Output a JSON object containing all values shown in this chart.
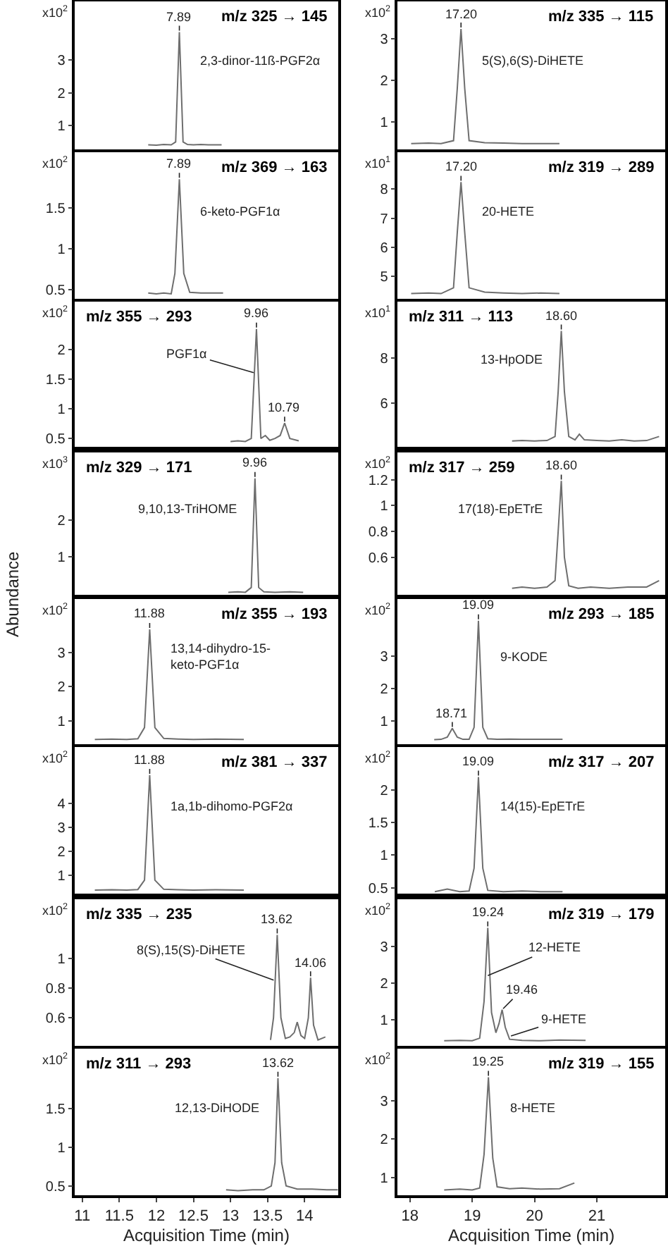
{
  "chart_data": [
    {
      "type": "line",
      "title": "m/z 325 → 145",
      "x": [
        11.89,
        12.0,
        12.1,
        12.2,
        12.26,
        12.31,
        12.36,
        12.42,
        12.5,
        12.6,
        12.7,
        12.88
      ],
      "values": [
        0.41,
        0.4,
        0.42,
        0.41,
        0.5,
        3.86,
        0.5,
        0.42,
        0.41,
        0.42,
        0.41,
        0.41
      ],
      "color": "#6e6e6e",
      "xlim": [
        10.9,
        14.45
      ],
      "xticks": [
        11,
        11.5,
        12,
        12.5,
        13,
        13.5,
        14
      ],
      "ylim": [
        0.27,
        4.8
      ],
      "yticks": [
        1,
        2,
        3
      ],
      "tick_labels": "y",
      "annotations": [
        "x10$^{2}$",
        {
          "text": "7.89",
          "x": 12.31,
          "y": 3.86
        },
        "2,3-dinor-11ß-PGF2α"
      ]
    },
    {
      "type": "line",
      "title": "m/z 335 → 115",
      "x": [
        18.02,
        18.3,
        18.5,
        18.7,
        18.76,
        18.82,
        18.88,
        18.95,
        19.2,
        19.5,
        19.8,
        20.1,
        20.4
      ],
      "values": [
        0.48,
        0.49,
        0.48,
        0.55,
        1.8,
        3.23,
        1.8,
        0.55,
        0.5,
        0.49,
        0.48,
        0.48,
        0.48
      ],
      "color": "#6e6e6e",
      "xlim": [
        17.8,
        22.1
      ],
      "xticks": [
        18,
        19,
        20,
        21
      ],
      "ylim": [
        0.34,
        3.89
      ],
      "yticks": [
        1,
        2,
        3
      ],
      "tick_labels": "y",
      "annotations": [
        "x10$^{2}$",
        {
          "text": "17.20",
          "x": 18.82,
          "y": 3.23
        },
        "5(S),6(S)-DiHETE"
      ]
    },
    {
      "type": "line",
      "title": "m/z 369 → 163",
      "x": [
        11.89,
        12.0,
        12.1,
        12.2,
        12.25,
        12.31,
        12.37,
        12.45,
        12.6,
        12.75,
        12.9
      ],
      "values": [
        0.46,
        0.45,
        0.46,
        0.45,
        0.7,
        1.85,
        0.7,
        0.47,
        0.46,
        0.46,
        0.46
      ],
      "color": "#6e6e6e",
      "xlim": [
        10.9,
        14.45
      ],
      "xticks": [
        11,
        11.5,
        12,
        12.5,
        13,
        13.5,
        14
      ],
      "ylim": [
        0.39,
        2.18
      ],
      "yticks": [
        0.5,
        1,
        1.5
      ],
      "tick_labels": "y",
      "annotations": [
        "x10$^{2}$",
        {
          "text": "7.89",
          "x": 12.31,
          "y": 1.85
        },
        "6-keto-PGF1α"
      ]
    },
    {
      "type": "line",
      "title": "m/z 319 → 289",
      "x": [
        18.02,
        18.3,
        18.5,
        18.7,
        18.76,
        18.82,
        18.88,
        18.95,
        19.2,
        19.5,
        19.8,
        20.1,
        20.4
      ],
      "values": [
        4.4,
        4.42,
        4.4,
        4.6,
        6.5,
        8.24,
        6.5,
        4.6,
        4.45,
        4.42,
        4.4,
        4.42,
        4.4
      ],
      "color": "#6e6e6e",
      "xlim": [
        17.8,
        22.1
      ],
      "xticks": [
        18,
        19,
        20,
        21
      ],
      "ylim": [
        4.22,
        9.27
      ],
      "yticks": [
        5,
        6,
        7,
        8
      ],
      "tick_labels": "y",
      "annotations": [
        "x10$^{1}$",
        {
          "text": "17.20",
          "x": 18.82,
          "y": 8.24
        },
        "20-HETE"
      ]
    },
    {
      "type": "line",
      "title": "m/z 355 → 293",
      "x": [
        13.0,
        13.1,
        13.2,
        13.28,
        13.35,
        13.41,
        13.47,
        13.53,
        13.6,
        13.67,
        13.73,
        13.8,
        13.92
      ],
      "values": [
        0.45,
        0.46,
        0.45,
        0.5,
        2.34,
        0.5,
        0.55,
        0.47,
        0.5,
        0.55,
        0.76,
        0.5,
        0.46
      ],
      "color": "#6e6e6e",
      "xlim": [
        10.9,
        14.45
      ],
      "xticks": [
        11,
        11.5,
        12,
        12.5,
        13,
        13.5,
        14
      ],
      "ylim": [
        0.36,
        2.8
      ],
      "yticks": [
        0.5,
        1,
        1.5,
        2
      ],
      "tick_labels": "y",
      "annotations": [
        "x10$^{2}$",
        {
          "text": "9.96",
          "x": 13.35,
          "y": 2.34
        },
        {
          "text": "10.79",
          "x": 13.73,
          "y": 0.76
        },
        {
          "text": "PGF1α",
          "x": 13.33,
          "y": 1.6
        }
      ]
    },
    {
      "type": "line",
      "title": "m/z 311 → 113",
      "x": [
        19.64,
        19.8,
        20.0,
        20.2,
        20.33,
        20.38,
        20.43,
        20.48,
        20.55,
        20.65,
        20.72,
        20.8,
        21.0,
        21.2,
        21.4,
        21.6,
        21.8,
        22.0
      ],
      "values": [
        4.3,
        4.32,
        4.3,
        4.32,
        4.5,
        6.5,
        9.2,
        6.5,
        4.5,
        4.35,
        4.6,
        4.35,
        4.32,
        4.3,
        4.35,
        4.3,
        4.32,
        4.5
      ],
      "color": "#6e6e6e",
      "xlim": [
        17.8,
        22.1
      ],
      "xticks": [
        18,
        19,
        20,
        21
      ],
      "ylim": [
        4.04,
        10.5
      ],
      "yticks": [
        6,
        8
      ],
      "tick_labels": "y",
      "annotations": [
        "x10$^{1}$",
        {
          "text": "18.60",
          "x": 20.43,
          "y": 9.2
        },
        "13-HpODE"
      ]
    },
    {
      "type": "line",
      "title": "m/z 329 → 171",
      "ylabel": "Abundance",
      "x": [
        12.97,
        13.1,
        13.2,
        13.28,
        13.33,
        13.38,
        13.45,
        13.6,
        13.8,
        13.98
      ],
      "values": [
        0.02,
        0.03,
        0.02,
        0.15,
        3.14,
        0.15,
        0.03,
        0.02,
        0.03,
        0.02
      ],
      "color": "#6e6e6e",
      "xlim": [
        10.9,
        14.45
      ],
      "xticks": [
        11,
        11.5,
        12,
        12.5,
        13,
        13.5,
        14
      ],
      "ylim": [
        -0.05,
        3.85
      ],
      "yticks": [
        1,
        2
      ],
      "tick_labels": "y",
      "annotations": [
        "x10$^{3}$",
        {
          "text": "9.96",
          "x": 13.33,
          "y": 3.14
        },
        "9,10,13-TriHOME"
      ]
    },
    {
      "type": "line",
      "title": "m/z 317 → 259",
      "x": [
        19.64,
        19.8,
        20.0,
        20.2,
        20.33,
        20.38,
        20.43,
        20.48,
        20.55,
        20.7,
        20.9,
        21.2,
        21.5,
        21.8,
        22.0
      ],
      "values": [
        0.36,
        0.37,
        0.36,
        0.37,
        0.42,
        0.8,
        1.19,
        0.6,
        0.38,
        0.36,
        0.37,
        0.36,
        0.37,
        0.37,
        0.42
      ],
      "color": "#6e6e6e",
      "xlim": [
        17.8,
        22.1
      ],
      "xticks": [
        18,
        19,
        20,
        21
      ],
      "ylim": [
        0.31,
        1.41
      ],
      "yticks": [
        0.6,
        0.8,
        1,
        1.2
      ],
      "tick_labels": "y",
      "annotations": [
        "x10$^{2}$",
        {
          "text": "18.60",
          "x": 20.43,
          "y": 1.19
        },
        "17(18)-EpETrE"
      ]
    },
    {
      "type": "line",
      "title": "m/z 355 → 193",
      "x": [
        11.17,
        11.4,
        11.6,
        11.75,
        11.84,
        11.91,
        11.98,
        12.1,
        12.3,
        12.5,
        12.8,
        13.18
      ],
      "values": [
        0.45,
        0.46,
        0.45,
        0.47,
        0.8,
        3.69,
        0.8,
        0.48,
        0.46,
        0.45,
        0.46,
        0.45
      ],
      "color": "#6e6e6e",
      "xlim": [
        10.9,
        14.45
      ],
      "xticks": [
        11,
        11.5,
        12,
        12.5,
        13,
        13.5,
        14
      ],
      "ylim": [
        0.31,
        4.58
      ],
      "yticks": [
        1,
        2,
        3
      ],
      "tick_labels": "y",
      "annotations": [
        "x10$^{2}$",
        {
          "text": "11.88",
          "x": 11.91,
          "y": 3.69
        },
        "13,14-dihydro-15-keto-PGF1α"
      ]
    },
    {
      "type": "line",
      "title": "m/z 293 → 185",
      "x": [
        18.39,
        18.5,
        18.6,
        18.68,
        18.76,
        18.85,
        18.95,
        19.03,
        19.1,
        19.17,
        19.25,
        19.4,
        19.6,
        19.8,
        20.1,
        20.45
      ],
      "values": [
        0.42,
        0.43,
        0.5,
        0.77,
        0.5,
        0.43,
        0.43,
        0.8,
        4.1,
        0.8,
        0.45,
        0.43,
        0.44,
        0.43,
        0.43,
        0.43
      ],
      "color": "#6e6e6e",
      "xlim": [
        17.8,
        22.1
      ],
      "xticks": [
        18,
        19,
        20,
        21
      ],
      "ylim": [
        0.28,
        4.77
      ],
      "yticks": [
        1,
        2,
        3
      ],
      "tick_labels": "y",
      "annotations": [
        "x10$^{2}$",
        {
          "text": "19.09",
          "x": 19.1,
          "y": 4.1
        },
        {
          "text": "18.71",
          "x": 18.68,
          "y": 0.77
        },
        "9-KODE"
      ]
    },
    {
      "type": "line",
      "title": "m/z 381 → 337",
      "x": [
        11.17,
        11.4,
        11.6,
        11.75,
        11.84,
        11.91,
        11.98,
        12.1,
        12.3,
        12.5,
        12.8,
        13.18
      ],
      "values": [
        0.39,
        0.4,
        0.39,
        0.41,
        0.8,
        5.17,
        0.8,
        0.42,
        0.4,
        0.39,
        0.4,
        0.39
      ],
      "color": "#6e6e6e",
      "xlim": [
        10.9,
        14.45
      ],
      "xticks": [
        11,
        11.5,
        12,
        12.5,
        13,
        13.5,
        14
      ],
      "ylim": [
        0.24,
        6.34
      ],
      "yticks": [
        1,
        2,
        3,
        4
      ],
      "tick_labels": "y",
      "annotations": [
        "x10$^{2}$",
        {
          "text": "11.88",
          "x": 11.91,
          "y": 5.17
        },
        "1a,1b-dihomo-PGF2α"
      ]
    },
    {
      "type": "line",
      "title": "m/z 317 → 207",
      "x": [
        18.4,
        18.6,
        18.8,
        18.95,
        19.03,
        19.1,
        19.17,
        19.25,
        19.5,
        19.8,
        20.1,
        20.45
      ],
      "values": [
        0.44,
        0.48,
        0.44,
        0.45,
        0.8,
        2.2,
        0.8,
        0.46,
        0.44,
        0.45,
        0.44,
        0.44
      ],
      "color": "#6e6e6e",
      "xlim": [
        17.8,
        22.1
      ],
      "xticks": [
        18,
        19,
        20,
        21
      ],
      "ylim": [
        0.41,
        2.66
      ],
      "yticks": [
        0.5,
        1,
        1.5,
        2
      ],
      "tick_labels": "y",
      "annotations": [
        "x10$^{2}$",
        {
          "text": "19.09",
          "x": 19.1,
          "y": 2.2
        },
        "14(15)-EpETrE"
      ]
    },
    {
      "type": "line",
      "title": "m/z 335 → 235",
      "x": [
        13.54,
        13.58,
        13.63,
        13.68,
        13.74,
        13.8,
        13.86,
        13.9,
        13.95,
        14.0,
        14.05,
        14.08,
        14.12,
        14.18,
        14.28
      ],
      "values": [
        0.45,
        0.6,
        1.16,
        0.6,
        0.46,
        0.47,
        0.5,
        0.57,
        0.48,
        0.46,
        0.6,
        0.87,
        0.55,
        0.45,
        0.47
      ],
      "color": "#6e6e6e",
      "xlim": [
        10.9,
        14.45
      ],
      "xticks": [
        11,
        11.5,
        12,
        12.5,
        13,
        13.5,
        14
      ],
      "ylim": [
        0.41,
        1.4
      ],
      "yticks": [
        0.6,
        0.8,
        1
      ],
      "tick_labels": "y",
      "annotations": [
        "x10$^{2}$",
        {
          "text": "13.62",
          "x": 13.63,
          "y": 1.16
        },
        {
          "text": "14.06",
          "x": 14.08,
          "y": 0.87
        },
        {
          "text": "8(S),15(S)-DiHETE",
          "x": 13.6,
          "y": 0.85
        }
      ]
    },
    {
      "type": "line",
      "title": "m/z 319 → 179",
      "x": [
        18.55,
        18.8,
        19.0,
        19.12,
        19.19,
        19.25,
        19.31,
        19.38,
        19.43,
        19.48,
        19.53,
        19.6,
        19.8,
        20.1,
        20.4,
        20.82
      ],
      "values": [
        0.43,
        0.44,
        0.43,
        0.5,
        1.5,
        3.52,
        1.2,
        0.65,
        0.9,
        1.28,
        0.8,
        0.47,
        0.44,
        0.43,
        0.45,
        0.44
      ],
      "color": "#6e6e6e",
      "xlim": [
        17.8,
        22.1
      ],
      "xticks": [
        18,
        19,
        20,
        21
      ],
      "ylim": [
        0.29,
        4.3
      ],
      "yticks": [
        1,
        2,
        3
      ],
      "tick_labels": "y",
      "annotations": [
        "x10$^{2}$",
        {
          "text": "19.24",
          "x": 19.25,
          "y": 3.52
        },
        {
          "text": "19.46",
          "x": 19.48,
          "y": 1.28
        },
        {
          "text": "12-HETE",
          "x": 19.23,
          "y": 2.2
        },
        {
          "text": "9-HETE",
          "x": 19.6,
          "y": 0.55
        }
      ]
    },
    {
      "type": "line",
      "title": "m/z 311 → 293",
      "xlabel": "Acquisition Time (min)",
      "x": [
        12.94,
        13.1,
        13.3,
        13.45,
        13.55,
        13.6,
        13.64,
        13.69,
        13.75,
        13.9,
        14.1,
        14.3,
        14.45
      ],
      "values": [
        0.45,
        0.44,
        0.45,
        0.45,
        0.5,
        0.8,
        1.89,
        0.8,
        0.5,
        0.46,
        0.46,
        0.45,
        0.45
      ],
      "color": "#6e6e6e",
      "xlim": [
        10.9,
        14.45
      ],
      "xticks": [
        11,
        11.5,
        12,
        12.5,
        13,
        13.5,
        14
      ],
      "ylim": [
        0.38,
        2.27
      ],
      "yticks": [
        0.5,
        1,
        1.5
      ],
      "annotations": [
        "x10$^{2}$",
        {
          "text": "13.62",
          "x": 13.64,
          "y": 1.89
        },
        "12,13-DiHODE"
      ]
    },
    {
      "type": "line",
      "title": "m/z 319 → 155",
      "xlabel": "Acquisition Time (min)",
      "x": [
        18.55,
        18.8,
        19.0,
        19.12,
        19.19,
        19.26,
        19.33,
        19.4,
        19.6,
        19.8,
        20.1,
        20.4,
        20.64
      ],
      "values": [
        0.67,
        0.69,
        0.67,
        0.72,
        1.6,
        3.62,
        1.5,
        0.75,
        0.7,
        0.72,
        0.69,
        0.7,
        0.85
      ],
      "color": "#6e6e6e",
      "xlim": [
        17.8,
        22.1
      ],
      "xticks": [
        18,
        19,
        20,
        21
      ],
      "ylim": [
        0.53,
        4.37
      ],
      "yticks": [
        1,
        2,
        3
      ],
      "annotations": [
        "x10$^{2}$",
        {
          "text": "19.25",
          "x": 19.26,
          "y": 3.62
        },
        "8-HETE"
      ]
    }
  ]
}
